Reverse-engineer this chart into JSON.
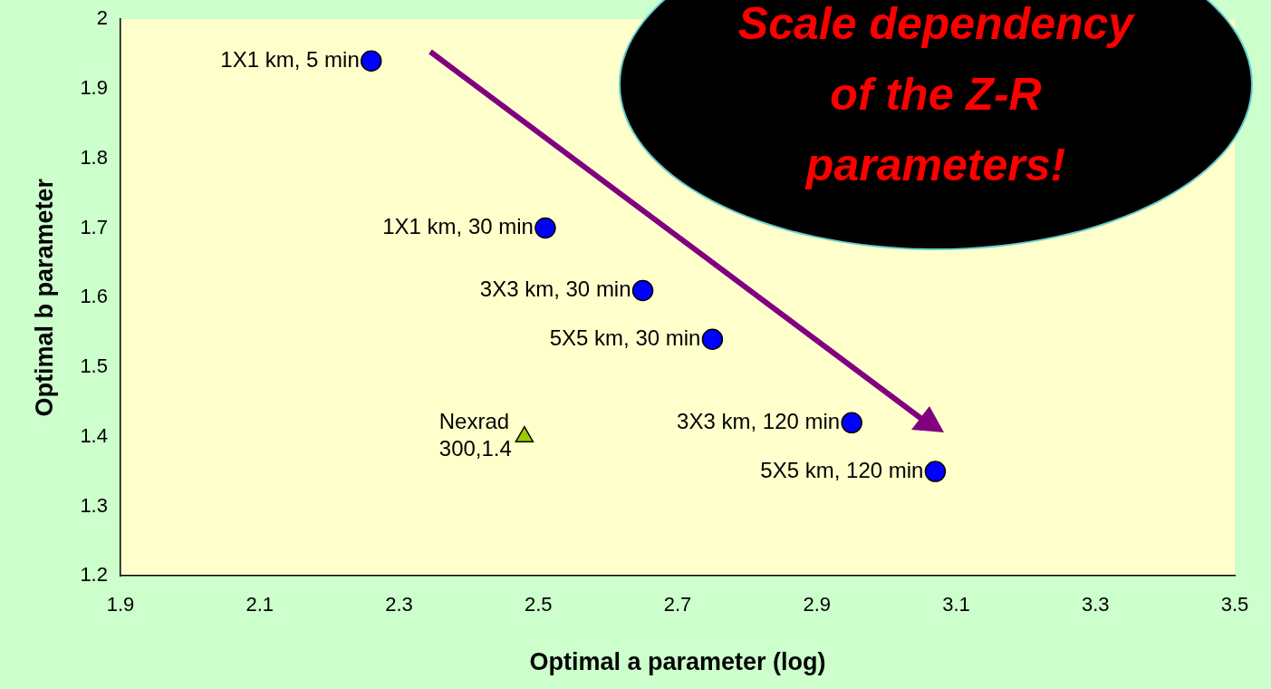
{
  "chart_data": {
    "type": "scatter",
    "xlabel": "Optimal a parameter (log)",
    "ylabel": "Optimal b parameter",
    "xlim": [
      1.9,
      3.5
    ],
    "xticks": [
      1.9,
      2.1,
      2.3,
      2.5,
      2.7,
      2.9,
      3.1,
      3.3,
      3.5
    ],
    "ylim": [
      1.2,
      2
    ],
    "yticks": [
      1.2,
      1.3,
      1.4,
      1.5,
      1.6,
      1.7,
      1.8,
      1.9,
      2
    ],
    "grid": false,
    "legend": false,
    "series": [
      {
        "color": "#0000ff",
        "marker": "circle",
        "x": [
          2.26,
          2.51,
          2.65,
          2.75,
          2.95,
          3.07
        ],
        "values": [
          1.94,
          1.7,
          1.61,
          1.54,
          1.42,
          1.35
        ]
      },
      {
        "color": "#99cc00",
        "marker": "triangle",
        "x": [
          2.48
        ],
        "values": [
          1.4
        ]
      }
    ],
    "annotations": [
      {
        "text": "1X1 km, 5 min",
        "x": 2.26,
        "y": 1.94
      },
      {
        "text": "1X1 km, 30 min",
        "x": 2.51,
        "y": 1.7
      },
      {
        "text": "3X3 km, 30 min",
        "x": 2.65,
        "y": 1.61
      },
      {
        "text": "5X5 km, 30 min",
        "x": 2.75,
        "y": 1.54
      },
      {
        "text": "3X3 km, 120 min",
        "x": 2.95,
        "y": 1.42
      },
      {
        "text": "5X5 km, 120 min",
        "x": 3.07,
        "y": 1.35
      },
      {
        "text": "Nexrad\n300,1.4",
        "x": 2.48,
        "y": 1.4
      },
      "Scale dependency of the Z-R parameters!"
    ]
  }
}
